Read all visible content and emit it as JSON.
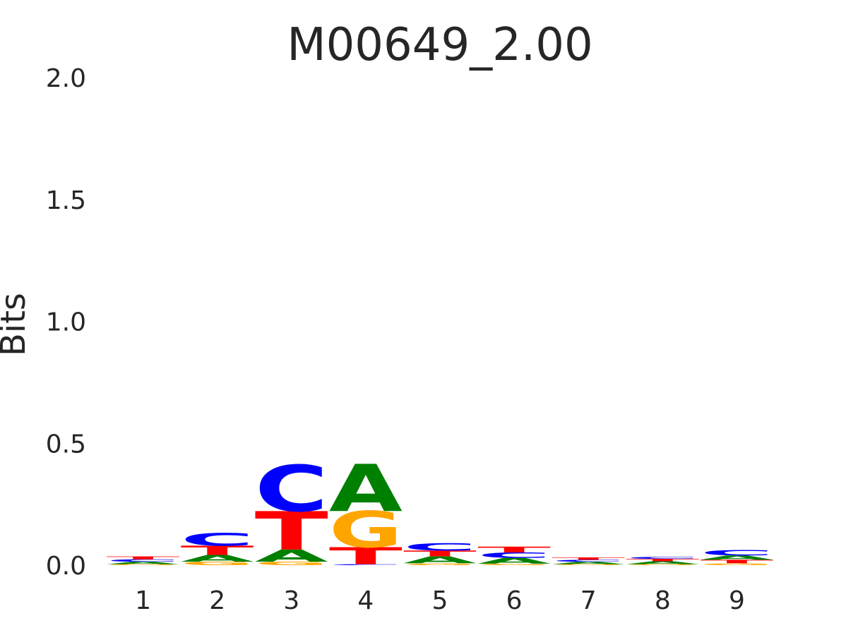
{
  "chart_data": {
    "type": "sequence-logo",
    "title": "M00649_2.00",
    "ylabel": "Bits",
    "xlabel": "",
    "ylim": [
      0,
      2.0
    ],
    "y_ticks": [
      "0.0",
      "0.5",
      "1.0",
      "1.5",
      "2.0"
    ],
    "positions": [
      "1",
      "2",
      "3",
      "4",
      "5",
      "6",
      "7",
      "8",
      "9"
    ],
    "colors": {
      "A": "#008000",
      "C": "#0000ff",
      "G": "#ffa500",
      "T": "#ff0000"
    },
    "stacks": [
      [
        {
          "base": "G",
          "bits": 0.004
        },
        {
          "base": "A",
          "bits": 0.01
        },
        {
          "base": "C",
          "bits": 0.01
        },
        {
          "base": "T",
          "bits": 0.012
        }
      ],
      [
        {
          "base": "G",
          "bits": 0.014
        },
        {
          "base": "A",
          "bits": 0.028
        },
        {
          "base": "T",
          "bits": 0.038
        },
        {
          "base": "C",
          "bits": 0.052
        }
      ],
      [
        {
          "base": "G",
          "bits": 0.014
        },
        {
          "base": "A",
          "bits": 0.05
        },
        {
          "base": "T",
          "bits": 0.158
        },
        {
          "base": "C",
          "bits": 0.19
        }
      ],
      [
        {
          "base": "C",
          "bits": 0.004
        },
        {
          "base": "T",
          "bits": 0.07
        },
        {
          "base": "G",
          "bits": 0.148
        },
        {
          "base": "A",
          "bits": 0.194
        }
      ],
      [
        {
          "base": "G",
          "bits": 0.008
        },
        {
          "base": "A",
          "bits": 0.028
        },
        {
          "base": "T",
          "bits": 0.024
        },
        {
          "base": "C",
          "bits": 0.03
        }
      ],
      [
        {
          "base": "G",
          "bits": 0.006
        },
        {
          "base": "A",
          "bits": 0.024
        },
        {
          "base": "C",
          "bits": 0.022
        },
        {
          "base": "T",
          "bits": 0.024
        }
      ],
      [
        {
          "base": "G",
          "bits": 0.004
        },
        {
          "base": "A",
          "bits": 0.01
        },
        {
          "base": "C",
          "bits": 0.008
        },
        {
          "base": "T",
          "bits": 0.01
        }
      ],
      [
        {
          "base": "G",
          "bits": 0.004
        },
        {
          "base": "A",
          "bits": 0.012
        },
        {
          "base": "T",
          "bits": 0.01
        },
        {
          "base": "C",
          "bits": 0.008
        }
      ],
      [
        {
          "base": "G",
          "bits": 0.008
        },
        {
          "base": "T",
          "bits": 0.014
        },
        {
          "base": "A",
          "bits": 0.018
        },
        {
          "base": "C",
          "bits": 0.022
        }
      ]
    ]
  }
}
